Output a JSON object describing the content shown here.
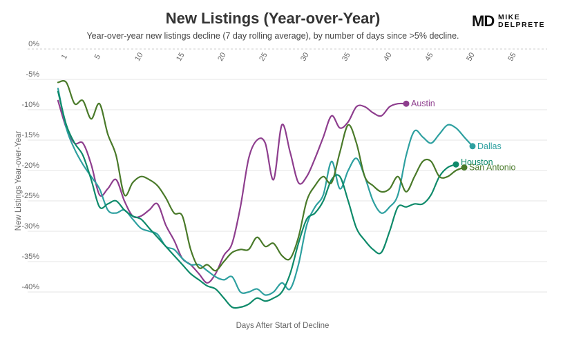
{
  "header": {
    "title": "New Listings (Year-over-Year)",
    "subtitle": "Year-over-year new listings decline (7 day rolling average), by number of days since >5% decline."
  },
  "brand": {
    "mark": "MD",
    "name_line1": "MIKE",
    "name_line2": "DELPRETE"
  },
  "chart_data": {
    "type": "line",
    "xlabel": "Days After Start of Decline",
    "ylabel": "New Listings Year-over-Year",
    "xlim": [
      -1,
      59
    ],
    "ylim": [
      -42.5,
      0
    ],
    "x_ticks": [
      1,
      5,
      10,
      15,
      20,
      25,
      30,
      35,
      40,
      45,
      50,
      55
    ],
    "y_ticks": [
      0,
      -5,
      -10,
      -15,
      -20,
      -25,
      -30,
      -35,
      -40
    ],
    "y_tick_labels": [
      "0%",
      "-5%",
      "-10%",
      "-15%",
      "-20%",
      "-25%",
      "-30%",
      "-35%",
      "-40%"
    ],
    "grid": "horizontal",
    "legend": "end-of-line labels",
    "series": [
      {
        "name": "Austin",
        "color": "#8e3e8e",
        "points": [
          [
            0,
            -8.5
          ],
          [
            1,
            -13
          ],
          [
            2,
            -15.5
          ],
          [
            3,
            -15.5
          ],
          [
            4,
            -19
          ],
          [
            5,
            -24
          ],
          [
            6,
            -23
          ],
          [
            7,
            -21.5
          ],
          [
            8,
            -25
          ],
          [
            9,
            -27.5
          ],
          [
            10,
            -27.5
          ],
          [
            11,
            -26.5
          ],
          [
            12,
            -25.5
          ],
          [
            13,
            -29
          ],
          [
            14,
            -31.5
          ],
          [
            15,
            -34.5
          ],
          [
            16,
            -35.5
          ],
          [
            17,
            -37
          ],
          [
            18,
            -38.5
          ],
          [
            19,
            -37
          ],
          [
            20,
            -34
          ],
          [
            21,
            -32
          ],
          [
            22,
            -26
          ],
          [
            23,
            -18
          ],
          [
            24,
            -15
          ],
          [
            25,
            -15.5
          ],
          [
            26,
            -21.5
          ],
          [
            27,
            -12.5
          ],
          [
            28,
            -17
          ],
          [
            29,
            -22
          ],
          [
            30,
            -21
          ],
          [
            31,
            -18
          ],
          [
            32,
            -14.5
          ],
          [
            33,
            -11
          ],
          [
            34,
            -13
          ],
          [
            35,
            -12
          ],
          [
            36,
            -9.5
          ],
          [
            37,
            -9.5
          ],
          [
            38,
            -10.5
          ],
          [
            39,
            -11
          ],
          [
            40,
            -9.5
          ],
          [
            41,
            -9
          ],
          [
            42,
            -9
          ]
        ],
        "end_label": "Austin"
      },
      {
        "name": "Dallas",
        "color": "#2ea0a0",
        "points": [
          [
            0,
            -6.5
          ],
          [
            1,
            -13
          ],
          [
            2,
            -16.5
          ],
          [
            3,
            -19
          ],
          [
            4,
            -21
          ],
          [
            5,
            -23
          ],
          [
            6,
            -26.5
          ],
          [
            7,
            -27
          ],
          [
            8,
            -26.5
          ],
          [
            9,
            -28
          ],
          [
            10,
            -29.5
          ],
          [
            11,
            -30
          ],
          [
            12,
            -30.5
          ],
          [
            13,
            -32.5
          ],
          [
            14,
            -33
          ],
          [
            15,
            -34.5
          ],
          [
            16,
            -35.5
          ],
          [
            17,
            -35.5
          ],
          [
            18,
            -36.5
          ],
          [
            19,
            -37.5
          ],
          [
            20,
            -38
          ],
          [
            21,
            -37.5
          ],
          [
            22,
            -40
          ],
          [
            23,
            -40
          ],
          [
            24,
            -39.5
          ],
          [
            25,
            -40.5
          ],
          [
            26,
            -40
          ],
          [
            27,
            -38.5
          ],
          [
            28,
            -39.5
          ],
          [
            29,
            -35.5
          ],
          [
            30,
            -29
          ],
          [
            31,
            -26
          ],
          [
            32,
            -24
          ],
          [
            33,
            -18.5
          ],
          [
            34,
            -23
          ],
          [
            35,
            -20
          ],
          [
            36,
            -18
          ],
          [
            37,
            -21
          ],
          [
            38,
            -25
          ],
          [
            39,
            -27
          ],
          [
            40,
            -26
          ],
          [
            41,
            -24
          ],
          [
            42,
            -17.5
          ],
          [
            43,
            -13.5
          ],
          [
            44,
            -14.5
          ],
          [
            45,
            -15.5
          ],
          [
            46,
            -14
          ],
          [
            47,
            -12.5
          ],
          [
            48,
            -13
          ],
          [
            49,
            -14.5
          ],
          [
            50,
            -16
          ]
        ],
        "end_label": "Dallas"
      },
      {
        "name": "Houston",
        "color": "#0e8a6a",
        "points": [
          [
            0,
            -7
          ],
          [
            1,
            -12.5
          ],
          [
            2,
            -15.5
          ],
          [
            3,
            -17.5
          ],
          [
            4,
            -21.5
          ],
          [
            5,
            -26
          ],
          [
            6,
            -25.5
          ],
          [
            7,
            -25
          ],
          [
            8,
            -26.5
          ],
          [
            9,
            -27.5
          ],
          [
            10,
            -28
          ],
          [
            11,
            -29.5
          ],
          [
            12,
            -31
          ],
          [
            13,
            -32.5
          ],
          [
            14,
            -34
          ],
          [
            15,
            -35.5
          ],
          [
            16,
            -37
          ],
          [
            17,
            -38
          ],
          [
            18,
            -39
          ],
          [
            19,
            -39.5
          ],
          [
            20,
            -41
          ],
          [
            21,
            -42.5
          ],
          [
            22,
            -42.5
          ],
          [
            23,
            -42
          ],
          [
            24,
            -41
          ],
          [
            25,
            -41.5
          ],
          [
            26,
            -41
          ],
          [
            27,
            -40
          ],
          [
            28,
            -37
          ],
          [
            29,
            -32
          ],
          [
            30,
            -28
          ],
          [
            31,
            -27
          ],
          [
            32,
            -25
          ],
          [
            33,
            -21.5
          ],
          [
            34,
            -21
          ],
          [
            35,
            -25
          ],
          [
            36,
            -29.5
          ],
          [
            37,
            -31.5
          ],
          [
            38,
            -33
          ],
          [
            39,
            -33.5
          ],
          [
            40,
            -30
          ],
          [
            41,
            -26
          ],
          [
            42,
            -26
          ],
          [
            43,
            -25.5
          ],
          [
            44,
            -25.5
          ],
          [
            45,
            -24
          ],
          [
            46,
            -21
          ],
          [
            47,
            -19.5
          ],
          [
            48,
            -19
          ]
        ],
        "end_label": "Houston"
      },
      {
        "name": "San Antonio",
        "color": "#4a7a2a",
        "points": [
          [
            0,
            -5.5
          ],
          [
            1,
            -5.5
          ],
          [
            2,
            -9
          ],
          [
            3,
            -8.5
          ],
          [
            4,
            -11.5
          ],
          [
            5,
            -9
          ],
          [
            6,
            -14
          ],
          [
            7,
            -17.5
          ],
          [
            8,
            -24
          ],
          [
            9,
            -22
          ],
          [
            10,
            -21
          ],
          [
            11,
            -21.5
          ],
          [
            12,
            -22.5
          ],
          [
            13,
            -24.5
          ],
          [
            14,
            -27
          ],
          [
            15,
            -27.5
          ],
          [
            16,
            -33
          ],
          [
            17,
            -36
          ],
          [
            18,
            -35.5
          ],
          [
            19,
            -36.5
          ],
          [
            20,
            -35
          ],
          [
            21,
            -33.5
          ],
          [
            22,
            -33
          ],
          [
            23,
            -33
          ],
          [
            24,
            -31
          ],
          [
            25,
            -32.5
          ],
          [
            26,
            -32
          ],
          [
            27,
            -34
          ],
          [
            28,
            -34.5
          ],
          [
            29,
            -31
          ],
          [
            30,
            -25
          ],
          [
            31,
            -22.5
          ],
          [
            32,
            -21
          ],
          [
            33,
            -22
          ],
          [
            34,
            -17
          ],
          [
            35,
            -12.5
          ],
          [
            36,
            -15.5
          ],
          [
            37,
            -21
          ],
          [
            38,
            -22.5
          ],
          [
            39,
            -23.5
          ],
          [
            40,
            -23
          ],
          [
            41,
            -21
          ],
          [
            42,
            -23.5
          ],
          [
            43,
            -21
          ],
          [
            44,
            -18.5
          ],
          [
            45,
            -18.5
          ],
          [
            46,
            -21
          ],
          [
            47,
            -21
          ],
          [
            48,
            -20
          ],
          [
            49,
            -19.5
          ]
        ],
        "end_label": "San Antonio"
      }
    ]
  }
}
